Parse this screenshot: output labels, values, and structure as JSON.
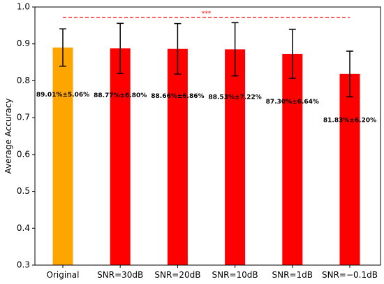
{
  "chart_data": {
    "type": "bar",
    "title": "",
    "xlabel": "",
    "ylabel": "Average Accuracy",
    "ylim": [
      0.3,
      1.0
    ],
    "yticks": [
      "0.3",
      "0.4",
      "0.5",
      "0.6",
      "0.7",
      "0.8",
      "0.9",
      "1.0"
    ],
    "grid": false,
    "categories": [
      "Original",
      "SNR=30dB",
      "SNR=20dB",
      "SNR=10dB",
      "SNR=1dB",
      "SNR=−0.1dB"
    ],
    "values": [
      0.8901,
      0.8877,
      0.8866,
      0.8853,
      0.873,
      0.8183
    ],
    "errors": [
      0.0506,
      0.068,
      0.0686,
      0.0722,
      0.0664,
      0.062
    ],
    "data_labels": [
      "89.01%±5.06%",
      "88.77%±6.80%",
      "88.66%±6.86%",
      "88.53%±7.22%",
      "87.30%±6.64%",
      "81.83%±6.20%"
    ],
    "label_y_values": [
      0.762,
      0.76,
      0.758,
      0.755,
      0.743,
      0.693
    ],
    "colors": [
      "#ffa500",
      "#ff0000",
      "#ff0000",
      "#ff0000",
      "#ff0000",
      "#ff0000"
    ],
    "significance": {
      "text": "***",
      "y": 0.972,
      "from": 0,
      "to": 5,
      "color": "#ff0000"
    }
  }
}
